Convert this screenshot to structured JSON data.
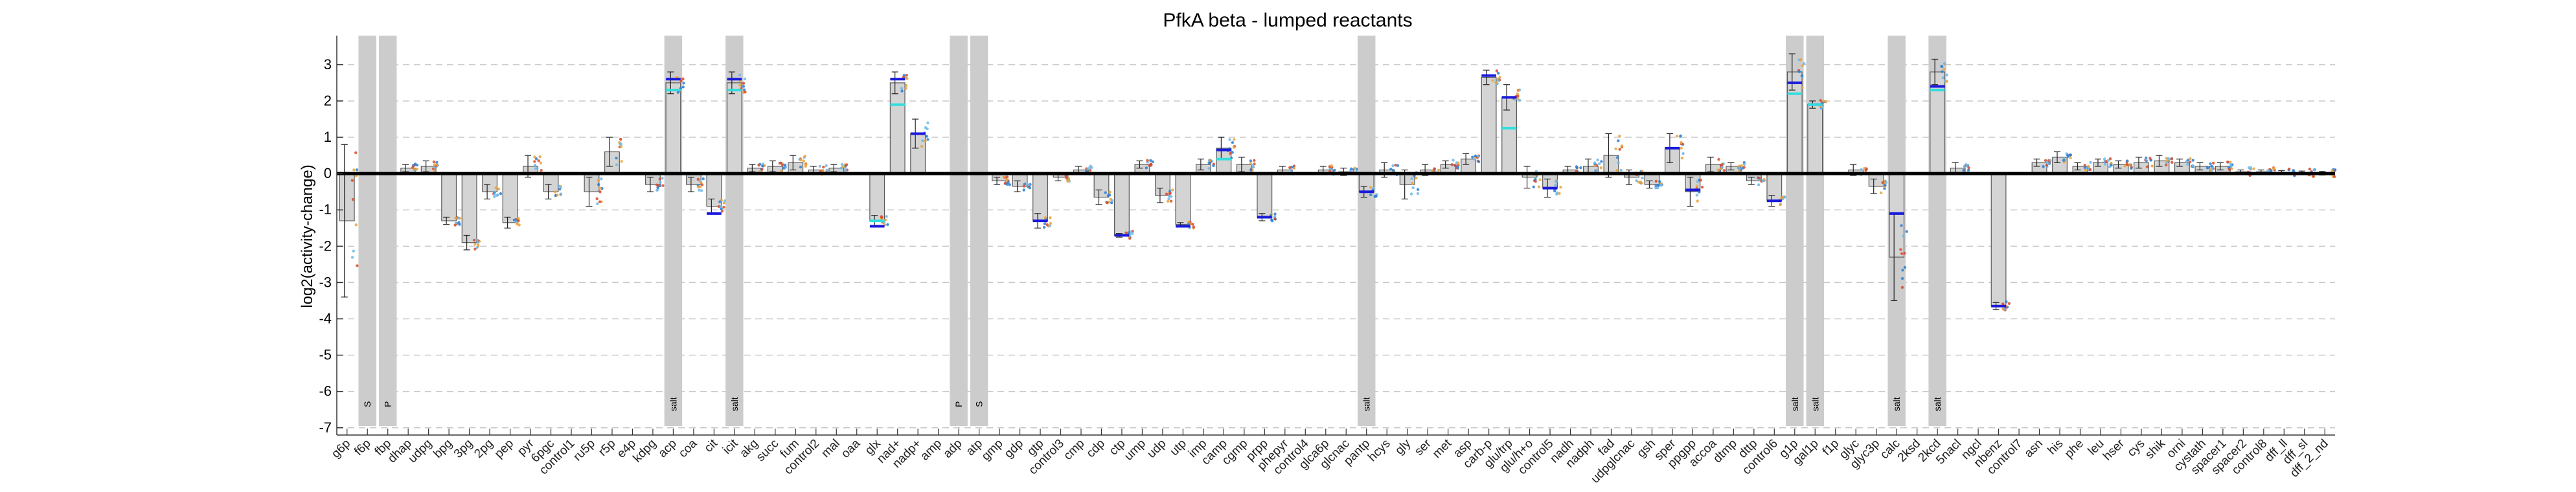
{
  "chart_data": {
    "type": "bar",
    "title": "PfkA beta - lumped reactants",
    "xlabel": "",
    "ylabel": "log2(activity-change)",
    "ylim": [
      -7.2,
      3.8
    ],
    "yticks": [
      -7,
      -6,
      -5,
      -4,
      -3,
      -2,
      -1,
      0,
      1,
      2,
      3
    ],
    "grid": "dashed-horizontal",
    "colors": {
      "bar_fill": "#d4d4d4",
      "bar_edge": "#5a5a5a",
      "shade": "#cccccc",
      "mean_line": "#1a1adb",
      "median_line": "#33dddd",
      "points": [
        "#2a7fd4",
        "#e8a23a",
        "#d94a2a",
        "#6fb7e8"
      ],
      "zero_line": "#000000"
    },
    "categories": [
      "g6p",
      "f6p",
      "fbp",
      "dhap",
      "udpg",
      "bpg",
      "3pg",
      "2pg",
      "pep",
      "pyr",
      "6pgc",
      "control1",
      "ru5p",
      "r5p",
      "e4p",
      "kdpg",
      "acp",
      "coa",
      "cit",
      "icit",
      "akg",
      "succ",
      "fum",
      "control2",
      "mal",
      "oaa",
      "glx",
      "nad+",
      "nadp+",
      "amp",
      "adp",
      "atp",
      "gmp",
      "gdp",
      "gtp",
      "control3",
      "cmp",
      "cdp",
      "ctp",
      "ump",
      "udp",
      "utp",
      "imp",
      "camp",
      "cgmp",
      "prpp",
      "phepyr",
      "control4",
      "glca6p",
      "glcnac",
      "pantp",
      "hcys",
      "gly",
      "ser",
      "met",
      "asp",
      "carb-p",
      "glu/trp",
      "glu/h+o",
      "control5",
      "nadh",
      "nadph",
      "fad",
      "udpglcnac",
      "gsh",
      "sper",
      "ppgpp",
      "accoa",
      "dtmp",
      "dttp",
      "control6",
      "g1p",
      "gal1p",
      "f1p",
      "glyc",
      "glyc3p",
      "calc",
      "2ksd",
      "2kcd",
      "5nacl",
      "ngcl",
      "nbenz",
      "control7",
      "asn",
      "his",
      "phe",
      "leu",
      "hser",
      "cys",
      "shik",
      "orni",
      "cystath",
      "spacer1",
      "spacer2",
      "control8",
      "dff_ll",
      "dff_sl",
      "dff_2_nd"
    ],
    "values": [
      -1.3,
      0,
      0,
      0.15,
      0.2,
      -1.3,
      -1.9,
      -0.5,
      -1.35,
      0.2,
      -0.5,
      0,
      -0.5,
      0.6,
      0,
      -0.3,
      2.5,
      -0.3,
      -0.9,
      2.5,
      0.15,
      0.2,
      0.3,
      0.1,
      0.15,
      0,
      -1.3,
      2.5,
      1.1,
      0,
      0,
      0,
      -0.2,
      -0.35,
      -1.3,
      -0.1,
      0.1,
      -0.65,
      -1.7,
      0.25,
      -0.6,
      -1.4,
      0.25,
      0.7,
      0.25,
      -1.2,
      0.1,
      0,
      0.1,
      0.05,
      -0.5,
      0.1,
      -0.3,
      0.1,
      0.25,
      0.4,
      2.65,
      2.1,
      -0.1,
      -0.4,
      0.1,
      0.2,
      0.5,
      -0.1,
      -0.3,
      0.7,
      -0.5,
      0.25,
      0.2,
      -0.2,
      -0.75,
      2.8,
      1.9,
      0,
      0.1,
      -0.35,
      -2.3,
      0,
      2.8,
      0.15,
      0,
      -3.65,
      0,
      0.3,
      0.45,
      0.2,
      0.3,
      0.25,
      0.3,
      0.35,
      0.3,
      0.2,
      0.2,
      0.05,
      0.05,
      0.03,
      0.02,
      0.01
    ],
    "errors": [
      2.1,
      0,
      0,
      0.1,
      0.15,
      0.1,
      0.2,
      0.2,
      0.15,
      0.3,
      0.2,
      0,
      0.4,
      0.4,
      1.2,
      0.2,
      0.3,
      0.2,
      0.2,
      0.3,
      0.1,
      0.15,
      0.2,
      0.1,
      0.1,
      0.1,
      0.15,
      0.3,
      0.4,
      0.1,
      0,
      0,
      0.1,
      0.15,
      0.2,
      0.1,
      0.1,
      0.2,
      0.05,
      0.1,
      0.2,
      0.05,
      0.15,
      0.3,
      0.2,
      0.1,
      0.1,
      0,
      0.1,
      0.1,
      0.15,
      0.2,
      0.4,
      0.15,
      0.1,
      0.15,
      0.2,
      0.35,
      0.3,
      0.25,
      0.1,
      0.2,
      0.6,
      0.2,
      0.1,
      0.4,
      0.4,
      0.2,
      0.1,
      0.1,
      0.15,
      0.5,
      0.1,
      0,
      0.15,
      0.2,
      1.2,
      0,
      0.35,
      0.15,
      0,
      0.1,
      0,
      0.1,
      0.15,
      0.1,
      0.1,
      0.1,
      0.15,
      0.15,
      0.1,
      0.1,
      0.1,
      0.05,
      0.05,
      0.05,
      0.05,
      0.05
    ],
    "mean_marks": [
      0,
      0,
      0,
      0,
      0,
      0,
      0,
      0,
      0,
      0,
      0,
      0,
      0,
      0,
      0,
      0,
      2.6,
      0,
      -1.1,
      2.6,
      0,
      0,
      0,
      0,
      0,
      0,
      -1.45,
      2.6,
      1.1,
      0,
      0,
      0,
      0,
      0,
      -1.3,
      0,
      0,
      0,
      -1.7,
      0,
      0,
      -1.45,
      0,
      0.65,
      0,
      -1.2,
      0,
      0,
      0,
      0,
      -0.5,
      0,
      0,
      0,
      0,
      0,
      2.7,
      2.1,
      0,
      -0.4,
      0,
      0,
      0,
      0,
      0,
      0.7,
      -0.45,
      0,
      0,
      0,
      -0.75,
      2.5,
      1.9,
      0,
      0,
      0,
      -1.1,
      0,
      2.4,
      0,
      0,
      -3.65,
      0,
      0,
      0,
      0,
      0,
      0,
      0,
      0,
      0,
      0,
      0,
      0,
      0,
      0,
      0,
      0
    ],
    "median_marks": [
      0,
      0,
      0,
      0,
      0,
      0,
      0,
      0,
      0,
      0,
      0,
      0,
      0,
      0,
      0,
      0,
      2.3,
      0,
      0,
      2.3,
      0,
      0,
      0,
      0,
      0,
      0,
      -1.3,
      1.9,
      0,
      0,
      0,
      0,
      0,
      0,
      0,
      0,
      0,
      0,
      0,
      0,
      0,
      0,
      0,
      0.4,
      0,
      0,
      0,
      0,
      0,
      0,
      0,
      0,
      0,
      0,
      0,
      0,
      0,
      1.25,
      0,
      0,
      0,
      0,
      0,
      0,
      0,
      0,
      0,
      0,
      0,
      0,
      0,
      2.2,
      1.9,
      0,
      0,
      0,
      0,
      0,
      2.3,
      0,
      0,
      0,
      0,
      0,
      0,
      0,
      0,
      0,
      0,
      0,
      0,
      0,
      0,
      0,
      0,
      0,
      0,
      0
    ],
    "shaded_columns": [
      {
        "category": "f6p",
        "label": "S"
      },
      {
        "category": "fbp",
        "label": "P"
      },
      {
        "category": "acp",
        "label": "salt"
      },
      {
        "category": "icit",
        "label": "salt"
      },
      {
        "category": "adp",
        "label": "P"
      },
      {
        "category": "atp",
        "label": "S"
      },
      {
        "category": "pantp",
        "label": "salt"
      },
      {
        "category": "g1p",
        "label": "salt"
      },
      {
        "category": "gal1p",
        "label": "salt"
      },
      {
        "category": "calc",
        "label": "salt"
      },
      {
        "category": "2kcd",
        "label": "salt"
      }
    ]
  }
}
